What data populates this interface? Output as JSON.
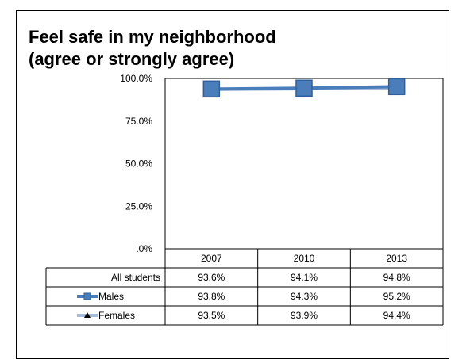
{
  "chart_data": {
    "type": "line",
    "title": "Feel safe in my neighborhood",
    "subtitle": "(agree or strongly agree)",
    "categories": [
      "2007",
      "2010",
      "2013"
    ],
    "y_ticks": [
      "100.0%",
      "75.0%",
      "50.0%",
      "25.0%",
      ".0%"
    ],
    "ylim": [
      0,
      100
    ],
    "series": [
      {
        "name": "All students",
        "values": [
          93.6,
          94.1,
          94.8
        ],
        "labels": [
          "93.6%",
          "94.1%",
          "94.8%"
        ],
        "plotted": false
      },
      {
        "name": "Males",
        "values": [
          93.8,
          94.3,
          95.2
        ],
        "labels": [
          "93.8%",
          "94.3%",
          "95.2%"
        ],
        "plotted": true,
        "color": "#4a7ebb",
        "marker": "square"
      },
      {
        "name": "Females",
        "values": [
          93.5,
          93.9,
          94.4
        ],
        "labels": [
          "93.5%",
          "93.9%",
          "94.4%"
        ],
        "plotted": true,
        "color": "#a6bcdc",
        "marker": "triangle"
      }
    ],
    "grid": false,
    "legend": "data-table"
  }
}
